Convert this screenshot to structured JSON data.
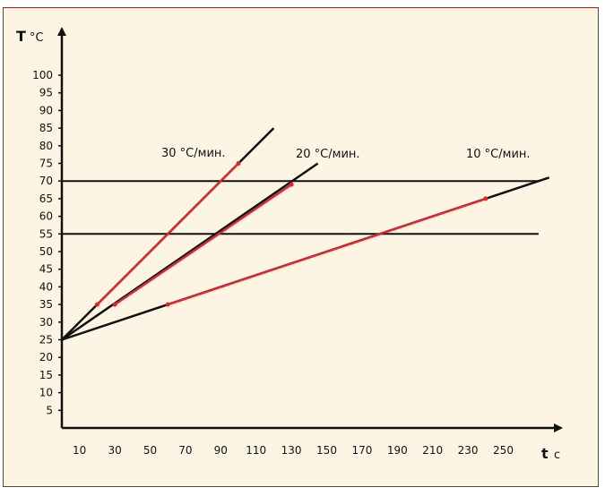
{
  "chart_data": {
    "type": "line",
    "y_axis": {
      "symbol": "T",
      "unit": "°C"
    },
    "x_axis": {
      "symbol": "t",
      "unit": "c"
    },
    "ylim": [
      0,
      110
    ],
    "xlim": [
      0,
      280
    ],
    "y_ticks": [
      5,
      10,
      15,
      20,
      25,
      30,
      35,
      40,
      45,
      50,
      55,
      60,
      65,
      70,
      75,
      80,
      85,
      90,
      95,
      100
    ],
    "x_ticks": [
      10,
      30,
      50,
      70,
      90,
      110,
      130,
      150,
      170,
      190,
      210,
      230,
      250
    ],
    "horizontal_lines": [
      70,
      55
    ],
    "horizontal_line_end_x": 270,
    "colors": {
      "full_line": "#111111",
      "highlight_segment": "#e0252a",
      "frame_border": "#9a2a22",
      "background": "#fdf5e4"
    },
    "series": [
      {
        "name": "30 °С/мин.",
        "start": [
          0,
          25
        ],
        "end": [
          120,
          85
        ],
        "highlight": {
          "from": [
            20,
            35
          ],
          "to": [
            100,
            75
          ]
        }
      },
      {
        "name": "20 °С/мин.",
        "start": [
          0,
          25
        ],
        "end": [
          145,
          75
        ],
        "highlight": {
          "from": [
            30,
            35
          ],
          "to": [
            130,
            69
          ]
        }
      },
      {
        "name": "10 °С/мин.",
        "start": [
          0,
          25
        ],
        "end": [
          276,
          71
        ],
        "highlight": {
          "from": [
            60,
            35
          ],
          "to": [
            240,
            65
          ]
        }
      }
    ]
  }
}
